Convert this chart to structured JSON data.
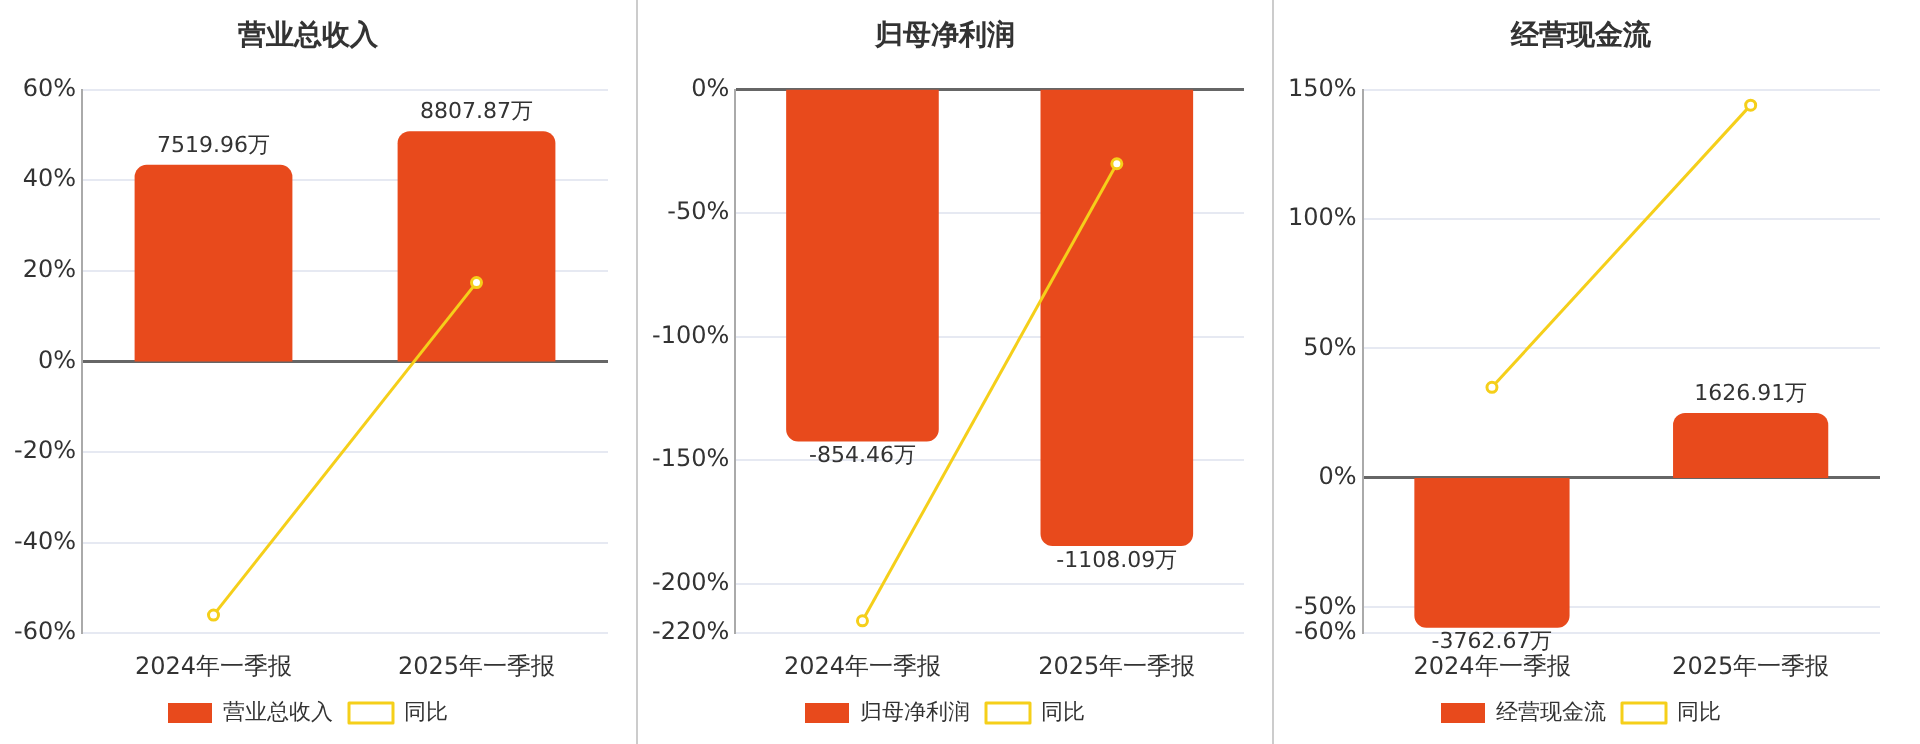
{
  "chart_data": [
    {
      "type": "bar",
      "title": "营业总收入",
      "categories": [
        "2024年一季报",
        "2025年一季报"
      ],
      "series": [
        {
          "name": "营业总收入",
          "axis": "y2",
          "color": "#e84a1c",
          "values": [
            7519.96,
            8807.87
          ],
          "value_labels": [
            "7519.96万",
            "8807.87万"
          ]
        },
        {
          "name": "同比",
          "type": "line",
          "color": "#f5cf1a",
          "values": [
            -56,
            17.4
          ]
        }
      ],
      "ylim": [
        -60,
        60
      ],
      "yticks": [
        {
          "value": -60,
          "label": "-60%"
        },
        {
          "value": -40,
          "label": "-40%"
        },
        {
          "value": -20,
          "label": "-20%"
        },
        {
          "value": 0,
          "label": "0%"
        },
        {
          "value": 20,
          "label": "20%"
        },
        {
          "value": 40,
          "label": "40%"
        },
        {
          "value": 60,
          "label": "60%"
        }
      ],
      "y2lim": [
        -10400,
        10400
      ],
      "grid": "y",
      "legend": "bottom",
      "marker": "circle"
    },
    {
      "type": "bar",
      "title": "归母净利润",
      "categories": [
        "2024年一季报",
        "2025年一季报"
      ],
      "series": [
        {
          "name": "归母净利润",
          "axis": "y2",
          "color": "#e84a1c",
          "values": [
            -854.46,
            -1108.09
          ],
          "value_labels": [
            "-854.46万",
            "-1108.09万"
          ]
        },
        {
          "name": "同比",
          "type": "line",
          "color": "#f5cf1a",
          "values": [
            -215,
            -30
          ]
        }
      ],
      "ylim": [
        -220,
        0
      ],
      "yticks": [
        {
          "value": -220,
          "label": "-220%"
        },
        {
          "value": -200,
          "label": "-200%"
        },
        {
          "value": -150,
          "label": "-150%"
        },
        {
          "value": -100,
          "label": "-100%"
        },
        {
          "value": -50,
          "label": "-50%"
        },
        {
          "value": 0,
          "label": "0%"
        }
      ],
      "y2lim": [
        -1320,
        0
      ],
      "grid": "y",
      "legend": "bottom",
      "marker": "circle"
    },
    {
      "type": "bar",
      "title": "经营现金流",
      "categories": [
        "2024年一季报",
        "2025年一季报"
      ],
      "series": [
        {
          "name": "经营现金流",
          "axis": "y2",
          "color": "#e84a1c",
          "values": [
            -3762.67,
            1626.91
          ],
          "value_labels": [
            "-3762.67万",
            "1626.91万"
          ]
        },
        {
          "name": "同比",
          "type": "line",
          "color": "#f5cf1a",
          "values": [
            35,
            144
          ]
        }
      ],
      "ylim": [
        -60,
        150
      ],
      "yticks": [
        {
          "value": -60,
          "label": "-60%"
        },
        {
          "value": -50,
          "label": "-50%"
        },
        {
          "value": 0,
          "label": "0%"
        },
        {
          "value": 50,
          "label": "50%"
        },
        {
          "value": 100,
          "label": "100%"
        },
        {
          "value": 150,
          "label": "150%"
        }
      ],
      "y2lim": [
        -3900,
        9750
      ],
      "grid": "y",
      "legend": "bottom",
      "marker": "circle"
    }
  ]
}
